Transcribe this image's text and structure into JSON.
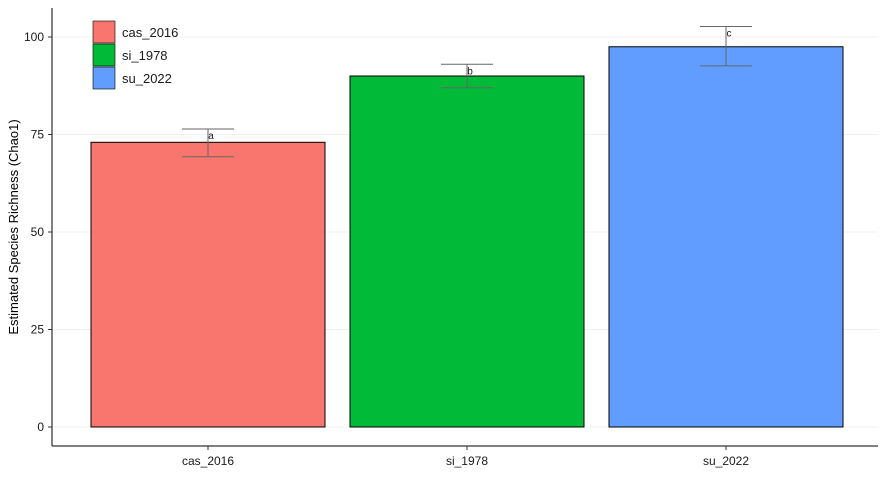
{
  "chart_data": {
    "type": "bar",
    "title": "",
    "xlabel": "",
    "ylabel": "Estimated Species Richness (Chao1)",
    "ylim": [
      0,
      105
    ],
    "yticks": [
      0,
      25,
      50,
      75,
      100
    ],
    "grid": "horizontal",
    "categories": [
      "cas_2016",
      "si_1978",
      "su_2022"
    ],
    "values": [
      73,
      90,
      97.5
    ],
    "error_low": [
      69.3,
      87,
      92.6
    ],
    "error_high": [
      76.4,
      93,
      102.7
    ],
    "significance_labels": [
      "a",
      "b",
      "c"
    ],
    "colors": [
      "#F8766D",
      "#00BA38",
      "#619CFF"
    ],
    "legend": {
      "position": "top-left",
      "entries": [
        "cas_2016",
        "si_1978",
        "su_2022"
      ]
    }
  }
}
